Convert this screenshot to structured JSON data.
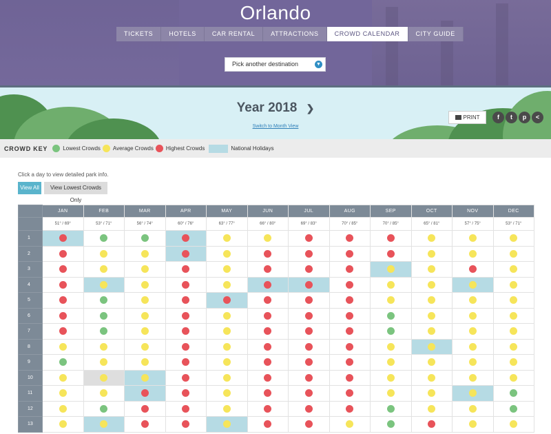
{
  "header": {
    "city": "Orlando"
  },
  "nav": {
    "tabs": [
      {
        "label": "TICKETS",
        "active": false
      },
      {
        "label": "HOTELS",
        "active": false
      },
      {
        "label": "CAR RENTAL",
        "active": false
      },
      {
        "label": "ATTRACTIONS",
        "active": false
      },
      {
        "label": "CROWD CALENDAR",
        "active": true
      },
      {
        "label": "CITY GUIDE",
        "active": false
      }
    ]
  },
  "destination_select": {
    "value": "Pick another destination"
  },
  "year_view": {
    "title": "Year 2018",
    "next_icon": "chevron-right",
    "switch_link": "Switch to Month View"
  },
  "print_button": {
    "label": "PRINT"
  },
  "social": [
    {
      "name": "facebook-icon",
      "glyph": "f"
    },
    {
      "name": "twitter-icon",
      "glyph": "t"
    },
    {
      "name": "pinterest-icon",
      "glyph": "p"
    },
    {
      "name": "share-icon",
      "glyph": "<"
    }
  ],
  "crowd_key": {
    "title": "CROWD KEY",
    "items": [
      {
        "label": "Lowest Crowds",
        "color": "#7bc47f"
      },
      {
        "label": "Average Crowds",
        "color": "#f6e55a"
      },
      {
        "label": "Highest Crowds",
        "color": "#e8535a"
      }
    ],
    "holiday_label": "National Holidays",
    "holiday_color": "#b6dbe4"
  },
  "calendar": {
    "hint": "Click a day to view detailed park info.",
    "view_all_label": "View All",
    "view_low_label": "View Lowest Crowds Only",
    "months": [
      "JAN",
      "FEB",
      "MAR",
      "APR",
      "MAY",
      "JUN",
      "JUL",
      "AUG",
      "SEP",
      "OCT",
      "NOV",
      "DEC"
    ],
    "temps": [
      "51° / 69°",
      "53° / 71°",
      "56° / 74°",
      "60° / 76°",
      "63° / 77°",
      "66° / 80°",
      "69° / 83°",
      "70° / 85°",
      "70° / 85°",
      "65° / 81°",
      "57° / 75°",
      "53° / 71°"
    ],
    "levels": {
      "L": "#7bc47f",
      "A": "#f6e55a",
      "H": "#e8535a"
    },
    "rows": [
      {
        "day": "1",
        "levels": [
          "H",
          "L",
          "L",
          "H",
          "A",
          "A",
          "H",
          "H",
          "H",
          "A",
          "A",
          "A"
        ],
        "holidays": [
          0,
          3
        ],
        "selected": []
      },
      {
        "day": "2",
        "levels": [
          "H",
          "A",
          "A",
          "H",
          "A",
          "H",
          "H",
          "H",
          "H",
          "A",
          "A",
          "A"
        ],
        "holidays": [
          3
        ],
        "selected": []
      },
      {
        "day": "3",
        "levels": [
          "H",
          "A",
          "A",
          "H",
          "A",
          "H",
          "H",
          "H",
          "A",
          "A",
          "H",
          "A"
        ],
        "holidays": [
          8
        ],
        "selected": []
      },
      {
        "day": "4",
        "levels": [
          "H",
          "A",
          "A",
          "H",
          "A",
          "H",
          "H",
          "H",
          "A",
          "A",
          "A",
          "A"
        ],
        "holidays": [
          1,
          5,
          6,
          10
        ],
        "selected": []
      },
      {
        "day": "5",
        "levels": [
          "H",
          "L",
          "A",
          "H",
          "H",
          "H",
          "H",
          "H",
          "A",
          "A",
          "A",
          "A"
        ],
        "holidays": [
          4
        ],
        "selected": []
      },
      {
        "day": "6",
        "levels": [
          "H",
          "L",
          "A",
          "H",
          "A",
          "H",
          "H",
          "H",
          "L",
          "A",
          "A",
          "A"
        ],
        "holidays": [],
        "selected": []
      },
      {
        "day": "7",
        "levels": [
          "H",
          "L",
          "A",
          "H",
          "A",
          "H",
          "H",
          "H",
          "L",
          "A",
          "A",
          "A"
        ],
        "holidays": [],
        "selected": []
      },
      {
        "day": "8",
        "levels": [
          "A",
          "A",
          "A",
          "H",
          "A",
          "H",
          "H",
          "H",
          "A",
          "A",
          "A",
          "A"
        ],
        "holidays": [
          9
        ],
        "selected": []
      },
      {
        "day": "9",
        "levels": [
          "L",
          "A",
          "A",
          "H",
          "A",
          "H",
          "H",
          "H",
          "A",
          "A",
          "A",
          "A"
        ],
        "holidays": [],
        "selected": []
      },
      {
        "day": "10",
        "levels": [
          "A",
          "A",
          "A",
          "H",
          "A",
          "H",
          "H",
          "H",
          "A",
          "A",
          "A",
          "A"
        ],
        "holidays": [
          2
        ],
        "selected": [
          1
        ]
      },
      {
        "day": "11",
        "levels": [
          "A",
          "A",
          "H",
          "H",
          "A",
          "H",
          "H",
          "H",
          "A",
          "A",
          "A",
          "L"
        ],
        "holidays": [
          2,
          10
        ],
        "selected": []
      },
      {
        "day": "12",
        "levels": [
          "A",
          "L",
          "H",
          "H",
          "A",
          "H",
          "H",
          "H",
          "L",
          "A",
          "A",
          "L"
        ],
        "holidays": [],
        "selected": []
      },
      {
        "day": "13",
        "levels": [
          "A",
          "A",
          "H",
          "H",
          "A",
          "H",
          "H",
          "A",
          "L",
          "H",
          "A",
          "A"
        ],
        "holidays": [
          1,
          4
        ],
        "selected": []
      }
    ]
  }
}
